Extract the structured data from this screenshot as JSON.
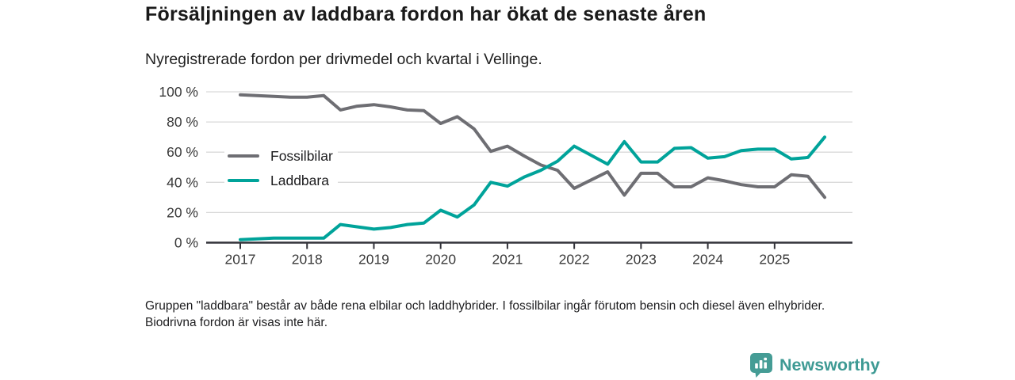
{
  "header": {
    "title": "Försäljningen av laddbara fordon har ökat de senaste åren",
    "subtitle": "Nyregistrerade fordon per drivmedel och kvartal i Vellinge."
  },
  "chart_data": {
    "type": "line",
    "x_unit": "quarter",
    "x": [
      "2017-Q1",
      "2017-Q2",
      "2017-Q3",
      "2017-Q4",
      "2018-Q1",
      "2018-Q2",
      "2018-Q3",
      "2018-Q4",
      "2019-Q1",
      "2019-Q2",
      "2019-Q3",
      "2019-Q4",
      "2020-Q1",
      "2020-Q2",
      "2020-Q3",
      "2020-Q4",
      "2021-Q1",
      "2021-Q2",
      "2021-Q3",
      "2021-Q4",
      "2022-Q1",
      "2022-Q2",
      "2022-Q3",
      "2022-Q4",
      "2023-Q1",
      "2023-Q2",
      "2023-Q3",
      "2023-Q4",
      "2024-Q1",
      "2024-Q2",
      "2024-Q3",
      "2024-Q4",
      "2025-Q1",
      "2025-Q2",
      "2025-Q3",
      "2025-Q4"
    ],
    "x_tick_labels": [
      "2017",
      "2018",
      "2019",
      "2020",
      "2021",
      "2022",
      "2023",
      "2024",
      "2025"
    ],
    "y_ticks": [
      0,
      20,
      40,
      60,
      80,
      100
    ],
    "y_tick_labels": [
      "0 %",
      "20 %",
      "40 %",
      "60 %",
      "80 %",
      "100 %"
    ],
    "ylim": [
      0,
      100
    ],
    "grid": true,
    "legend_position": "inside-left",
    "series": [
      {
        "name": "Fossilbilar",
        "color": "#6e6e73",
        "values": [
          98,
          97.5,
          97,
          96.5,
          96.5,
          97.5,
          88,
          90.5,
          91.5,
          90,
          88,
          87.5,
          79,
          83.5,
          75.5,
          60.5,
          64,
          57.5,
          51.5,
          48,
          36,
          41.5,
          47,
          31.5,
          46,
          46,
          37,
          37,
          43,
          41,
          38.5,
          37,
          37,
          45,
          44,
          30
        ]
      },
      {
        "name": "Laddbara",
        "color": "#00a39a",
        "values": [
          2,
          2.5,
          3,
          3,
          3,
          3,
          12,
          10.5,
          9,
          10,
          12,
          13,
          21.5,
          17,
          25,
          40,
          37.5,
          43.5,
          48,
          54,
          64,
          58,
          52,
          67,
          53.5,
          53.5,
          62.5,
          63,
          56,
          57,
          61,
          62,
          62,
          55.5,
          56.5,
          70
        ]
      }
    ]
  },
  "footer": {
    "note": "Gruppen \"laddbara\" består av både rena elbilar och laddhybrider. I fossilbilar ingår förutom bensin och diesel även elhybrider. Biodrivna fordon är visas inte här."
  },
  "branding": {
    "logo_icon": "bar-chart-pin-icon",
    "logo_text": "Newsworthy",
    "logo_color": "#459c95"
  },
  "style": {
    "gridline_color": "#dadada",
    "axis_color": "#33333a",
    "tick_label_color": "#3a3a3a"
  }
}
